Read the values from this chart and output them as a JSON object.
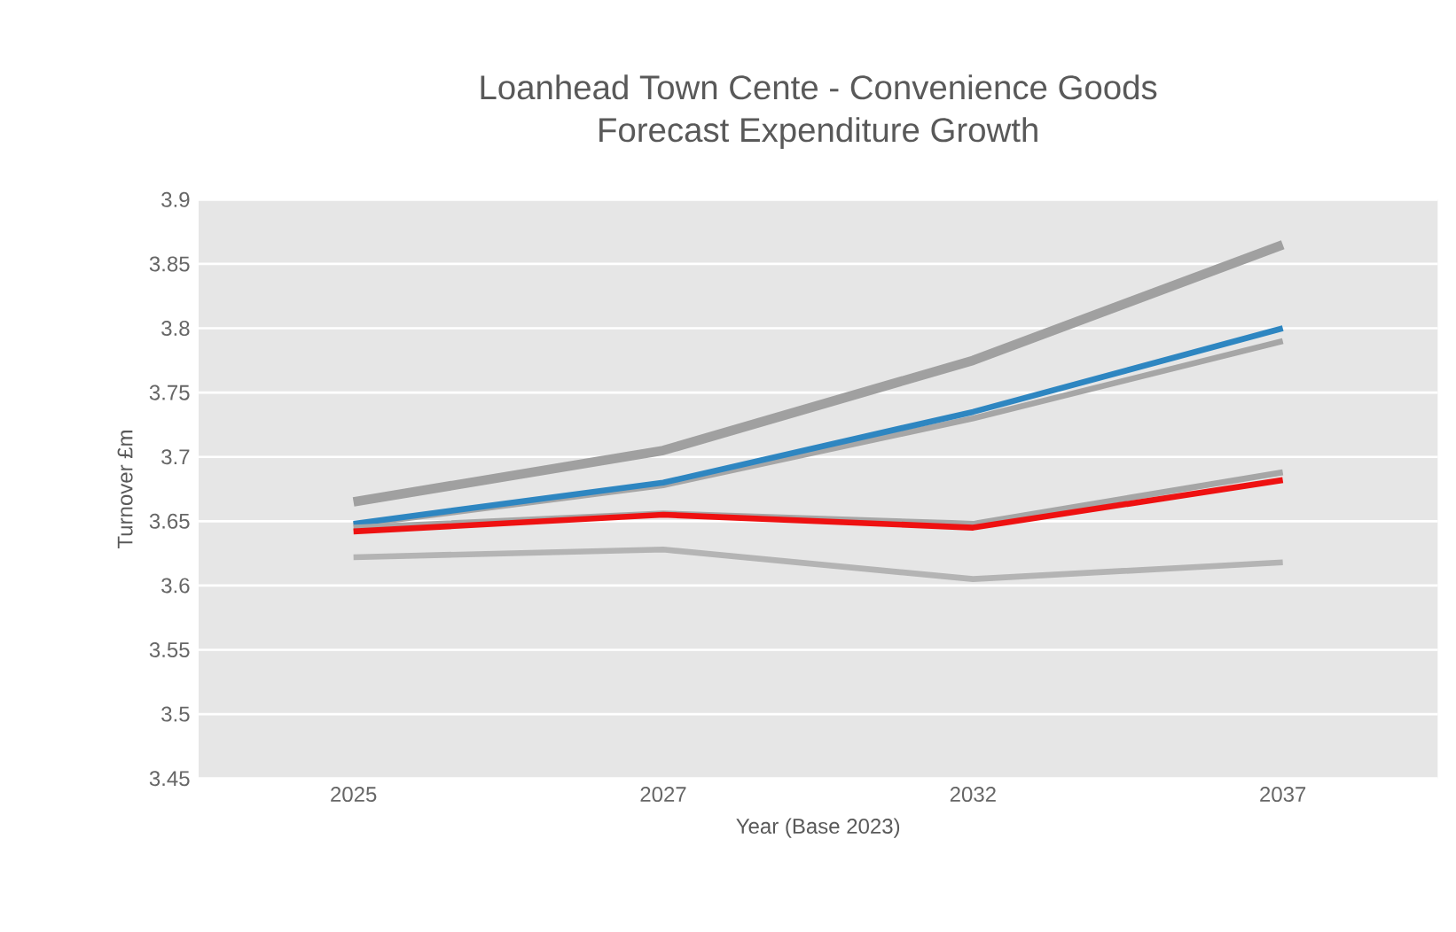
{
  "chart_data": {
    "type": "line",
    "title": "Loanhead Town Cente - Convenience Goods\nForecast Expenditure Growth",
    "xlabel": "Year (Base 2023)",
    "ylabel": "Turnover £m",
    "categories": [
      "2025",
      "2027",
      "2032",
      "2037"
    ],
    "series": [
      {
        "color": "#a0a0a0",
        "values": [
          3.665,
          3.705,
          3.775,
          3.865
        ]
      },
      {
        "color": "#a6a6a6",
        "values": [
          3.647,
          3.678,
          3.73,
          3.79
        ]
      },
      {
        "color": "#2e86c1",
        "values": [
          3.648,
          3.68,
          3.735,
          3.8
        ]
      },
      {
        "color": "#a6a6a6",
        "values": [
          3.645,
          3.656,
          3.648,
          3.688
        ]
      },
      {
        "color": "#ee1111",
        "values": [
          3.642,
          3.655,
          3.645,
          3.682
        ]
      },
      {
        "color": "#b4b4b4",
        "values": [
          3.622,
          3.628,
          3.605,
          3.618
        ]
      }
    ],
    "ylim": [
      3.45,
      3.9
    ],
    "yticks": [
      3.45,
      3.5,
      3.55,
      3.6,
      3.65,
      3.7,
      3.75,
      3.8,
      3.85,
      3.9
    ],
    "grid": "y",
    "marker": "none",
    "line_style": "solid"
  }
}
